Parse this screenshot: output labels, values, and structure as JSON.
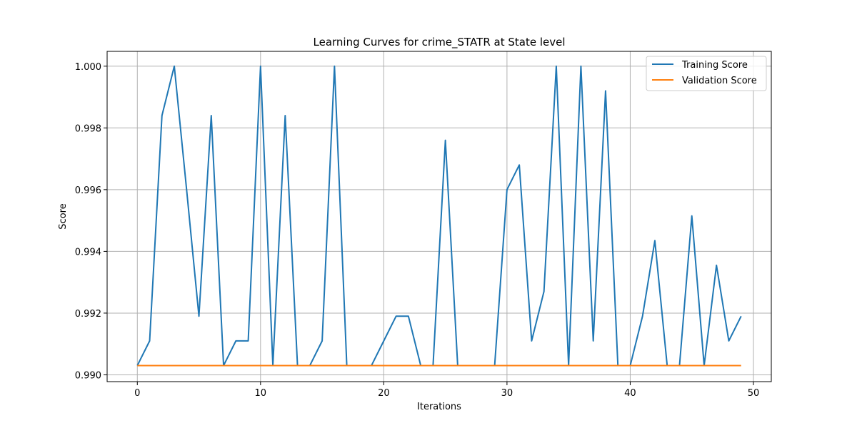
{
  "chart_data": {
    "type": "line",
    "title": "Learning Curves for crime_STATR at State level",
    "xlabel": "Iterations",
    "ylabel": "Score",
    "xlim": [
      -2.45,
      51.45
    ],
    "ylim": [
      0.98978,
      1.00048
    ],
    "xticks": [
      0,
      10,
      20,
      30,
      40,
      50
    ],
    "xtick_labels": [
      "0",
      "10",
      "20",
      "30",
      "40",
      "50"
    ],
    "yticks": [
      0.99,
      0.992,
      0.994,
      0.996,
      0.998,
      1.0
    ],
    "ytick_labels": [
      "0.990",
      "0.992",
      "0.994",
      "0.996",
      "0.998",
      "1.000"
    ],
    "grid": true,
    "legend_position": "top-right",
    "x": [
      0,
      1,
      2,
      3,
      4,
      5,
      6,
      7,
      8,
      9,
      10,
      11,
      12,
      13,
      14,
      15,
      16,
      17,
      18,
      19,
      20,
      21,
      22,
      23,
      24,
      25,
      26,
      27,
      28,
      29,
      30,
      31,
      32,
      33,
      34,
      35,
      36,
      37,
      38,
      39,
      40,
      41,
      42,
      43,
      44,
      45,
      46,
      47,
      48,
      49
    ],
    "series": [
      {
        "name": "Training Score",
        "color": "#1f77b4",
        "values": [
          0.9903,
          0.9911,
          0.9984,
          1.0,
          0.996,
          0.9919,
          0.9984,
          0.9903,
          0.9911,
          0.9911,
          1.0,
          0.9903,
          0.9984,
          0.9903,
          0.9903,
          0.9911,
          1.0,
          0.9903,
          0.9903,
          0.9903,
          0.9911,
          0.9919,
          0.9919,
          0.9903,
          0.9903,
          0.9976,
          0.9903,
          0.9903,
          0.9903,
          0.9903,
          0.996,
          0.9968,
          0.9911,
          0.9927,
          1.0,
          0.9903,
          1.0,
          0.9911,
          0.9992,
          0.9903,
          0.9903,
          0.9919,
          0.99435,
          0.9903,
          0.9903,
          0.99515,
          0.9903,
          0.99355,
          0.9911,
          0.9919
        ]
      },
      {
        "name": "Validation Score",
        "color": "#ff7f0e",
        "values": [
          0.9903,
          0.9903,
          0.9903,
          0.9903,
          0.9903,
          0.9903,
          0.9903,
          0.9903,
          0.9903,
          0.9903,
          0.9903,
          0.9903,
          0.9903,
          0.9903,
          0.9903,
          0.9903,
          0.9903,
          0.9903,
          0.9903,
          0.9903,
          0.9903,
          0.9903,
          0.9903,
          0.9903,
          0.9903,
          0.9903,
          0.9903,
          0.9903,
          0.9903,
          0.9903,
          0.9903,
          0.9903,
          0.9903,
          0.9903,
          0.9903,
          0.9903,
          0.9903,
          0.9903,
          0.9903,
          0.9903,
          0.9903,
          0.9903,
          0.9903,
          0.9903,
          0.9903,
          0.9903,
          0.9903,
          0.9903,
          0.9903,
          0.9903
        ]
      }
    ]
  }
}
